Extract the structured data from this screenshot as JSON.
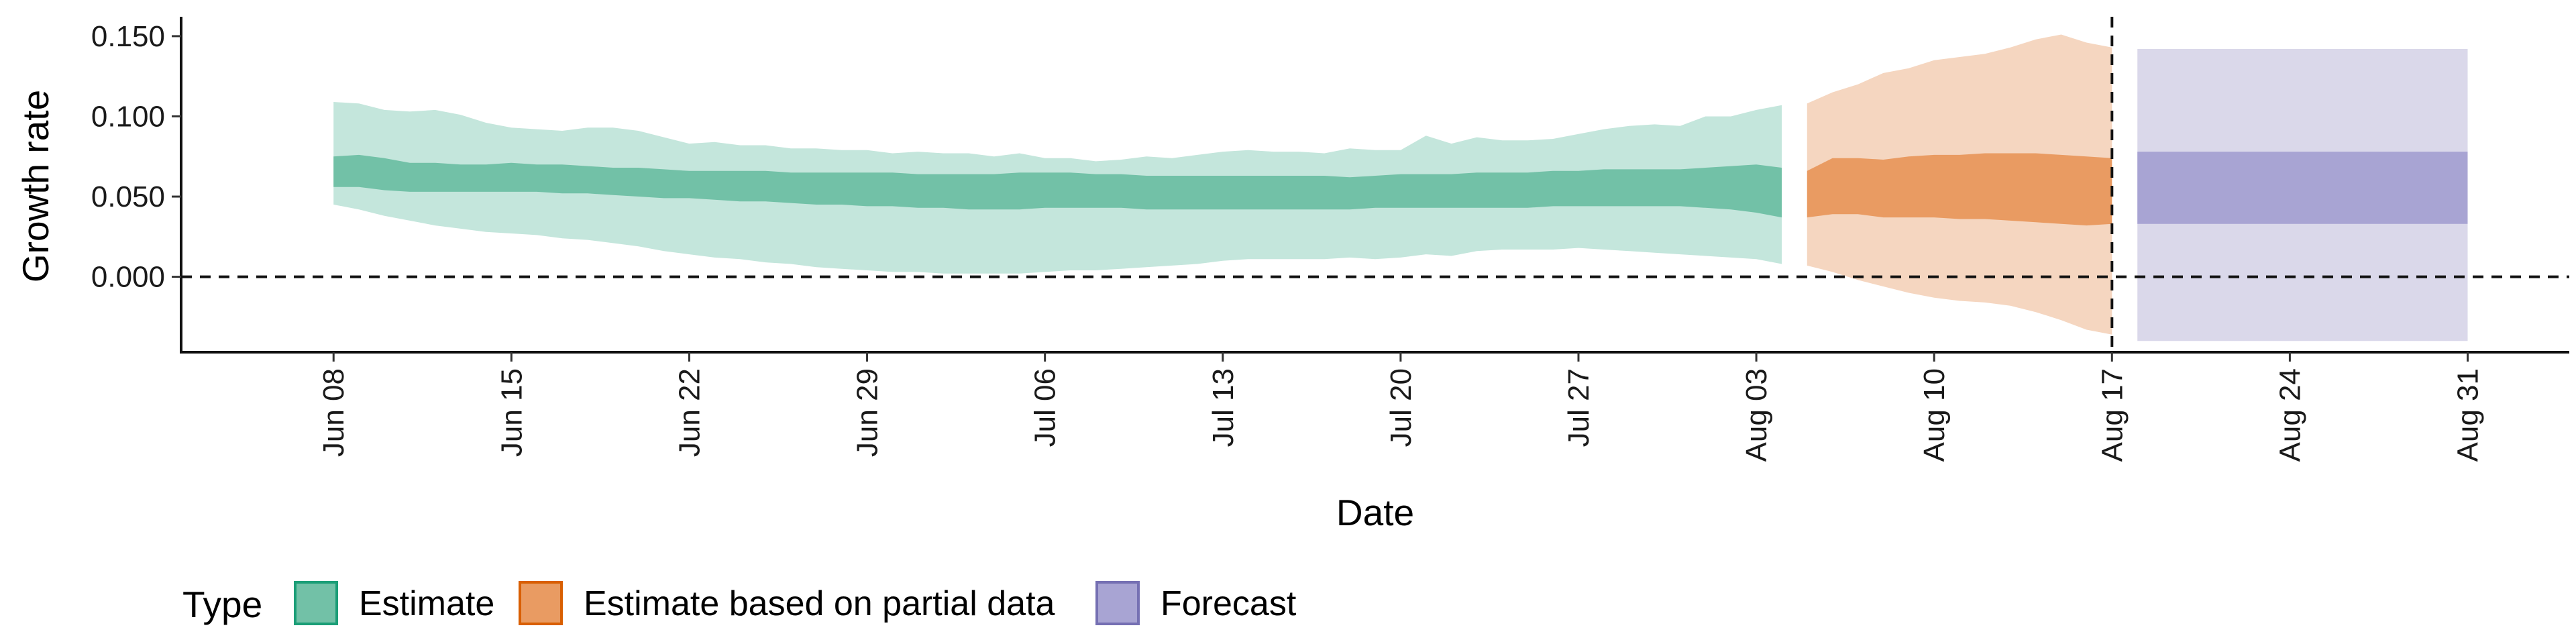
{
  "chart_data": {
    "type": "area",
    "xlabel": "Date",
    "ylabel": "Growth rate",
    "x_type": "date",
    "xlim": [
      "2020-06-02",
      "2020-09-04"
    ],
    "ylim": [
      -0.047,
      0.16
    ],
    "x_ticks": [
      {
        "date": "2020-06-08",
        "label": "Jun 08"
      },
      {
        "date": "2020-06-15",
        "label": "Jun 15"
      },
      {
        "date": "2020-06-22",
        "label": "Jun 22"
      },
      {
        "date": "2020-06-29",
        "label": "Jun 29"
      },
      {
        "date": "2020-07-06",
        "label": "Jul 06"
      },
      {
        "date": "2020-07-13",
        "label": "Jul 13"
      },
      {
        "date": "2020-07-20",
        "label": "Jul 20"
      },
      {
        "date": "2020-07-27",
        "label": "Jul 27"
      },
      {
        "date": "2020-08-03",
        "label": "Aug 03"
      },
      {
        "date": "2020-08-10",
        "label": "Aug 10"
      },
      {
        "date": "2020-08-17",
        "label": "Aug 17"
      },
      {
        "date": "2020-08-24",
        "label": "Aug 24"
      },
      {
        "date": "2020-08-31",
        "label": "Aug 31"
      }
    ],
    "y_ticks": [
      {
        "value": 0.0,
        "label": "0.000"
      },
      {
        "value": 0.05,
        "label": "0.050"
      },
      {
        "value": 0.1,
        "label": "0.100"
      },
      {
        "value": 0.15,
        "label": "0.150"
      }
    ],
    "reference_lines": [
      {
        "axis": "y",
        "value": 0.0,
        "style": "dashed"
      },
      {
        "axis": "x",
        "value": "2020-08-17",
        "style": "dashed"
      }
    ],
    "legend": {
      "title": "Type",
      "position": "bottom-left",
      "entries": [
        "Estimate",
        "Estimate based on partial data",
        "Forecast"
      ]
    },
    "series": [
      {
        "name": "Estimate",
        "color_outer": "#c4e6dc",
        "color_inner": "#72c1a7",
        "x": [
          "2020-06-08",
          "2020-06-09",
          "2020-06-10",
          "2020-06-11",
          "2020-06-12",
          "2020-06-13",
          "2020-06-14",
          "2020-06-15",
          "2020-06-16",
          "2020-06-17",
          "2020-06-18",
          "2020-06-19",
          "2020-06-20",
          "2020-06-21",
          "2020-06-22",
          "2020-06-23",
          "2020-06-24",
          "2020-06-25",
          "2020-06-26",
          "2020-06-27",
          "2020-06-28",
          "2020-06-29",
          "2020-06-30",
          "2020-07-01",
          "2020-07-02",
          "2020-07-03",
          "2020-07-04",
          "2020-07-05",
          "2020-07-06",
          "2020-07-07",
          "2020-07-08",
          "2020-07-09",
          "2020-07-10",
          "2020-07-11",
          "2020-07-12",
          "2020-07-13",
          "2020-07-14",
          "2020-07-15",
          "2020-07-16",
          "2020-07-17",
          "2020-07-18",
          "2020-07-19",
          "2020-07-20",
          "2020-07-21",
          "2020-07-22",
          "2020-07-23",
          "2020-07-24",
          "2020-07-25",
          "2020-07-26",
          "2020-07-27",
          "2020-07-28",
          "2020-07-29",
          "2020-07-30",
          "2020-07-31",
          "2020-08-01",
          "2020-08-02",
          "2020-08-03",
          "2020-08-04"
        ],
        "upper_90": [
          0.109,
          0.108,
          0.104,
          0.103,
          0.104,
          0.101,
          0.096,
          0.093,
          0.092,
          0.091,
          0.093,
          0.093,
          0.091,
          0.087,
          0.083,
          0.084,
          0.082,
          0.082,
          0.08,
          0.08,
          0.079,
          0.079,
          0.077,
          0.078,
          0.077,
          0.077,
          0.075,
          0.077,
          0.074,
          0.074,
          0.072,
          0.073,
          0.075,
          0.074,
          0.076,
          0.078,
          0.079,
          0.078,
          0.078,
          0.077,
          0.08,
          0.079,
          0.079,
          0.088,
          0.083,
          0.087,
          0.085,
          0.085,
          0.086,
          0.089,
          0.092,
          0.094,
          0.095,
          0.094,
          0.1,
          0.1,
          0.104,
          0.107
        ],
        "upper_50": [
          0.075,
          0.076,
          0.074,
          0.071,
          0.071,
          0.07,
          0.07,
          0.071,
          0.07,
          0.07,
          0.069,
          0.068,
          0.068,
          0.067,
          0.066,
          0.066,
          0.066,
          0.066,
          0.065,
          0.065,
          0.065,
          0.065,
          0.065,
          0.064,
          0.064,
          0.064,
          0.064,
          0.065,
          0.065,
          0.065,
          0.064,
          0.064,
          0.063,
          0.063,
          0.063,
          0.063,
          0.063,
          0.063,
          0.063,
          0.063,
          0.062,
          0.063,
          0.064,
          0.064,
          0.064,
          0.065,
          0.065,
          0.065,
          0.066,
          0.066,
          0.067,
          0.067,
          0.067,
          0.067,
          0.068,
          0.069,
          0.07,
          0.068
        ],
        "lower_50": [
          0.056,
          0.056,
          0.054,
          0.053,
          0.053,
          0.053,
          0.053,
          0.053,
          0.053,
          0.052,
          0.052,
          0.051,
          0.05,
          0.049,
          0.049,
          0.048,
          0.047,
          0.047,
          0.046,
          0.045,
          0.045,
          0.044,
          0.044,
          0.043,
          0.043,
          0.042,
          0.042,
          0.042,
          0.043,
          0.043,
          0.043,
          0.043,
          0.042,
          0.042,
          0.042,
          0.042,
          0.042,
          0.042,
          0.042,
          0.042,
          0.042,
          0.043,
          0.043,
          0.043,
          0.043,
          0.043,
          0.043,
          0.043,
          0.044,
          0.044,
          0.044,
          0.044,
          0.044,
          0.044,
          0.043,
          0.042,
          0.04,
          0.037
        ],
        "lower_90": [
          0.045,
          0.042,
          0.038,
          0.035,
          0.032,
          0.03,
          0.028,
          0.027,
          0.026,
          0.024,
          0.023,
          0.021,
          0.019,
          0.016,
          0.014,
          0.012,
          0.011,
          0.009,
          0.008,
          0.006,
          0.005,
          0.004,
          0.003,
          0.003,
          0.002,
          0.002,
          0.002,
          0.002,
          0.003,
          0.004,
          0.004,
          0.005,
          0.006,
          0.007,
          0.008,
          0.01,
          0.011,
          0.011,
          0.011,
          0.011,
          0.012,
          0.011,
          0.012,
          0.014,
          0.013,
          0.016,
          0.017,
          0.017,
          0.017,
          0.018,
          0.017,
          0.016,
          0.015,
          0.014,
          0.013,
          0.012,
          0.011,
          0.008
        ]
      },
      {
        "name": "Estimate based on partial data",
        "color_outer": "#f5d6c0",
        "color_inner": "#e99b62",
        "x": [
          "2020-08-05",
          "2020-08-06",
          "2020-08-07",
          "2020-08-08",
          "2020-08-09",
          "2020-08-10",
          "2020-08-11",
          "2020-08-12",
          "2020-08-13",
          "2020-08-14",
          "2020-08-15",
          "2020-08-16",
          "2020-08-17"
        ],
        "upper_90": [
          0.108,
          0.115,
          0.12,
          0.127,
          0.13,
          0.135,
          0.137,
          0.139,
          0.143,
          0.148,
          0.151,
          0.146,
          0.143
        ],
        "upper_50": [
          0.066,
          0.074,
          0.074,
          0.073,
          0.075,
          0.076,
          0.076,
          0.077,
          0.077,
          0.077,
          0.076,
          0.075,
          0.074
        ],
        "lower_50": [
          0.037,
          0.039,
          0.039,
          0.037,
          0.037,
          0.037,
          0.036,
          0.036,
          0.035,
          0.034,
          0.033,
          0.032,
          0.033
        ],
        "lower_90": [
          0.007,
          0.003,
          -0.002,
          -0.006,
          -0.01,
          -0.013,
          -0.015,
          -0.016,
          -0.018,
          -0.022,
          -0.027,
          -0.033,
          -0.036
        ]
      },
      {
        "name": "Forecast",
        "color_outer": "#dad8ea",
        "color_inner": "#a8a4d3",
        "x": [
          "2020-08-18",
          "2020-08-31"
        ],
        "upper_90": [
          0.142,
          0.142
        ],
        "upper_50": [
          0.078,
          0.078
        ],
        "lower_50": [
          0.033,
          0.033
        ],
        "lower_90": [
          -0.04,
          -0.04
        ]
      }
    ]
  },
  "legend_swatch_borders": [
    "#1b9e77",
    "#d95f02",
    "#7570b3"
  ]
}
